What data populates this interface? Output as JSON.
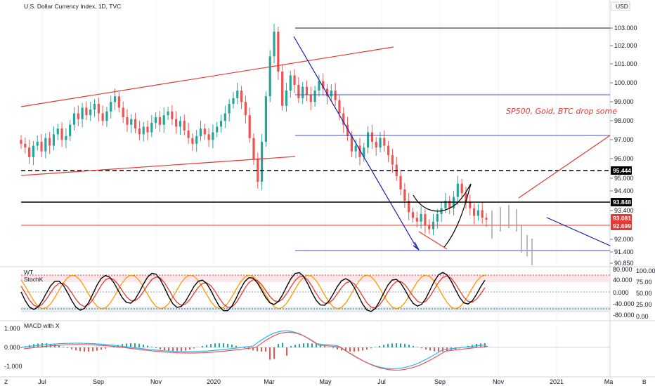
{
  "header": {
    "symbol_title": "U.S. Dollar Currency Index, 1D, TVC",
    "currency_badge": "USD",
    "annotation": "SP500, Gold, BTC drop some"
  },
  "panes": {
    "wt_label": "WT",
    "stoch_label": "StochK",
    "macd_label": "MACD with X"
  },
  "bottom_bar": {
    "left_badge": "Z",
    "right_badge": "B"
  },
  "chart_data": {
    "type": "candlestick",
    "title": "U.S. Dollar Currency Index, 1D, TVC",
    "price_axis": {
      "ticks": [
        "103.000",
        "102.000",
        "101.000",
        "100.000",
        "99.000",
        "98.000",
        "97.000",
        "96.000",
        "95.000",
        "94.400",
        "93.400",
        "92.000",
        "91.400",
        "90.850"
      ],
      "ylim": [
        90.6,
        104.2
      ]
    },
    "time_axis": {
      "ticks": [
        "Jul",
        "Sep",
        "Nov",
        "2020",
        "Mar",
        "May",
        "Jul",
        "Sep",
        "Nov",
        "2021",
        "Ma"
      ]
    },
    "price_tags": [
      {
        "value": "95.444",
        "color": "#000000"
      },
      {
        "value": "93.848",
        "color": "#000000"
      },
      {
        "value": "93.081",
        "color": "#e53935"
      },
      {
        "value": "92.699",
        "color": "#e53935"
      }
    ],
    "horizontal_levels": [
      {
        "value": 103.0,
        "color": "#131722",
        "style": "solid"
      },
      {
        "value": 99.35,
        "color": "#3f51b5",
        "style": "solid"
      },
      {
        "value": 97.22,
        "color": "#3f51b5",
        "style": "solid"
      },
      {
        "value": 95.444,
        "color": "#000000",
        "style": "dashed"
      },
      {
        "value": 93.848,
        "color": "#000000",
        "style": "solid"
      },
      {
        "value": 92.699,
        "color": "#e53935",
        "style": "solid"
      },
      {
        "value": 91.5,
        "color": "#3f51b5",
        "style": "solid"
      }
    ],
    "close_series": [
      97.0,
      96.8,
      96.3,
      96.9,
      97.1,
      96.6,
      97.3,
      96.9,
      97.5,
      97.8,
      97.2,
      97.4,
      98.0,
      98.6,
      98.3,
      98.9,
      98.5,
      98.8,
      99.1,
      98.6,
      98.2,
      98.7,
      99.2,
      99.5,
      98.9,
      98.4,
      98.0,
      98.3,
      97.8,
      97.5,
      97.9,
      97.6,
      98.1,
      98.4,
      98.0,
      98.5,
      98.7,
      98.3,
      97.9,
      98.2,
      97.7,
      97.3,
      97.0,
      97.4,
      97.8,
      97.5,
      97.2,
      97.6,
      97.9,
      98.2,
      98.6,
      99.1,
      99.4,
      99.8,
      99.2,
      98.5,
      97.3,
      96.2,
      95.0,
      97.1,
      99.5,
      101.6,
      102.9,
      100.8,
      99.0,
      99.8,
      100.6,
      100.1,
      99.4,
      100.0,
      99.6,
      99.2,
      99.8,
      100.3,
      99.9,
      99.5,
      99.8,
      99.3,
      98.6,
      98.0,
      97.4,
      96.6,
      96.9,
      96.3,
      96.8,
      97.6,
      97.1,
      96.8,
      97.3,
      96.9,
      96.4,
      95.9,
      95.3,
      94.6,
      94.0,
      93.4,
      93.1,
      92.9,
      93.3,
      92.7,
      92.5,
      92.9,
      93.3,
      93.6,
      94.0,
      93.6,
      94.2,
      94.9,
      94.4,
      93.9,
      93.6,
      93.2,
      93.5,
      93.1,
      93.0
    ],
    "drawings": [
      {
        "kind": "trendline",
        "color": "#e53935",
        "from": [
          "Jun-2019",
          98.7
        ],
        "to": [
          "Jul-2020",
          101.9
        ]
      },
      {
        "kind": "trendline",
        "color": "#e53935",
        "from": [
          "Jun-2019",
          95.1
        ],
        "to": [
          "Apr-2020",
          96.2
        ]
      },
      {
        "kind": "trendline",
        "color": "#1a1aa6",
        "from": [
          "Mar-2020",
          102.5
        ],
        "to": [
          "Aug-2020",
          91.6
        ]
      },
      {
        "kind": "trendline",
        "color": "#e53935",
        "from": [
          "Nov-2020",
          93.6
        ],
        "to": [
          "Apr-2021",
          97.2
        ]
      },
      {
        "kind": "trendline",
        "color": "#1a1aa6",
        "from": [
          "Nov-2020",
          93.2
        ],
        "to": [
          "Apr-2021",
          91.5
        ]
      }
    ],
    "wt_axis_ticks": [
      "80.000",
      "40.000",
      "0.000",
      "-40.000",
      "-80.000"
    ],
    "stoch_axis_ticks": [
      "100.00",
      "75.00",
      "50.00",
      "25.00",
      "0.00"
    ],
    "macd_axis_ticks": [
      "1.000",
      "0.000",
      "-1.000"
    ]
  },
  "colors": {
    "bull": "#26a69a",
    "bear": "#ef5350",
    "blue_line": "#3f51b5",
    "red_line": "#e53935",
    "black_line": "#000000"
  }
}
